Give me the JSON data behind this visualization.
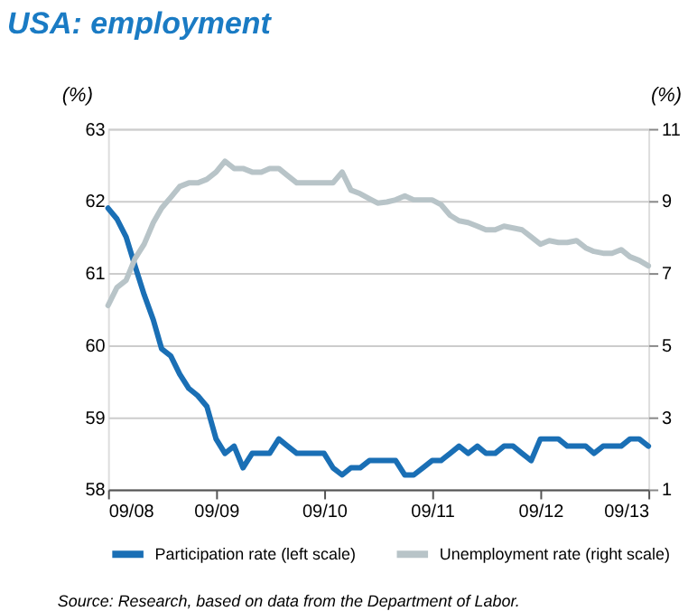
{
  "chart_data": {
    "type": "line",
    "title": "USA: employment",
    "ylabel": "(%)",
    "y2label": "(%)",
    "x": [
      "2008-09-01",
      "2008-10-01",
      "2008-11-01",
      "2008-12-01",
      "2009-01-01",
      "2009-02-01",
      "2009-03-01",
      "2009-04-01",
      "2009-05-01",
      "2009-06-01",
      "2009-07-01",
      "2009-08-01",
      "2009-09-01",
      "2009-10-01",
      "2009-11-01",
      "2009-12-01",
      "2010-01-01",
      "2010-02-01",
      "2010-03-01",
      "2010-04-01",
      "2010-05-01",
      "2010-06-01",
      "2010-07-01",
      "2010-08-01",
      "2010-09-01",
      "2010-10-01",
      "2010-11-01",
      "2010-12-01",
      "2011-01-01",
      "2011-02-01",
      "2011-03-01",
      "2011-04-01",
      "2011-05-01",
      "2011-06-01",
      "2011-07-01",
      "2011-08-01",
      "2011-09-01",
      "2011-10-01",
      "2011-11-01",
      "2011-12-01",
      "2012-01-01",
      "2012-02-01",
      "2012-03-01",
      "2012-04-01",
      "2012-05-01",
      "2012-06-01",
      "2012-07-01",
      "2012-08-01",
      "2012-09-01",
      "2012-10-01",
      "2012-11-01",
      "2012-12-01",
      "2013-01-01",
      "2013-02-01",
      "2013-03-01",
      "2013-04-01",
      "2013-05-01",
      "2013-06-01",
      "2013-07-01",
      "2013-08-01",
      "2013-09-01"
    ],
    "series": [
      {
        "name": "Participation rate (left scale)",
        "color": "#1a6fb5",
        "values": [
          61.9,
          61.75,
          61.5,
          61.1,
          60.7,
          60.35,
          59.95,
          59.85,
          59.6,
          59.4,
          59.3,
          59.15,
          58.7,
          58.5,
          58.6,
          58.3,
          58.5,
          58.5,
          58.5,
          58.7,
          58.6,
          58.5,
          58.5,
          58.5,
          58.5,
          58.3,
          58.2,
          58.3,
          58.3,
          58.4,
          58.4,
          58.4,
          58.4,
          58.2,
          58.2,
          58.3,
          58.4,
          58.4,
          58.5,
          58.6,
          58.5,
          58.6,
          58.5,
          58.5,
          58.6,
          58.6,
          58.5,
          58.4,
          58.7,
          58.7,
          58.7,
          58.6,
          58.6,
          58.6,
          58.5,
          58.6,
          58.6,
          58.6,
          58.7,
          58.7,
          58.6
        ]
      },
      {
        "name": "Unemployment rate (right scale)",
        "color": "#b8c4c8",
        "axis": "y2",
        "values": [
          6.1,
          6.6,
          6.8,
          7.4,
          7.8,
          8.4,
          8.8,
          9.1,
          9.4,
          9.5,
          9.5,
          9.6,
          9.8,
          10.1,
          9.9,
          9.9,
          9.8,
          9.8,
          9.9,
          9.9,
          9.7,
          9.5,
          9.5,
          9.5,
          9.5,
          9.5,
          9.8,
          9.3,
          9.2,
          9.06,
          8.94,
          8.97,
          9.03,
          9.14,
          9.03,
          9.03,
          9.03,
          8.9,
          8.6,
          8.45,
          8.4,
          8.3,
          8.2,
          8.2,
          8.3,
          8.25,
          8.2,
          8.0,
          7.8,
          7.9,
          7.85,
          7.85,
          7.9,
          7.7,
          7.6,
          7.55,
          7.55,
          7.65,
          7.45,
          7.35,
          7.2
        ]
      }
    ],
    "xlim": [
      "2008-09-01",
      "2013-09-01"
    ],
    "xticks": [
      {
        "value": "2008-09-01",
        "label": "09/08"
      },
      {
        "value": "2009-09-01",
        "label": "09/09"
      },
      {
        "value": "2010-09-01",
        "label": "09/10"
      },
      {
        "value": "2011-09-01",
        "label": "09/11"
      },
      {
        "value": "2012-09-01",
        "label": "09/12"
      },
      {
        "value": "2013-09-01",
        "label": "09/13"
      }
    ],
    "ylim": [
      58,
      63
    ],
    "yticks": [
      58,
      59,
      60,
      61,
      62,
      63
    ],
    "y2lim": [
      1,
      11
    ],
    "y2ticks": [
      1,
      3,
      5,
      7,
      9,
      11
    ],
    "grid": "y",
    "legend": "bottom",
    "line_style": "solid",
    "marker": "none",
    "annotations": [
      "Source: Research, based on data from the Department of Labor."
    ]
  }
}
